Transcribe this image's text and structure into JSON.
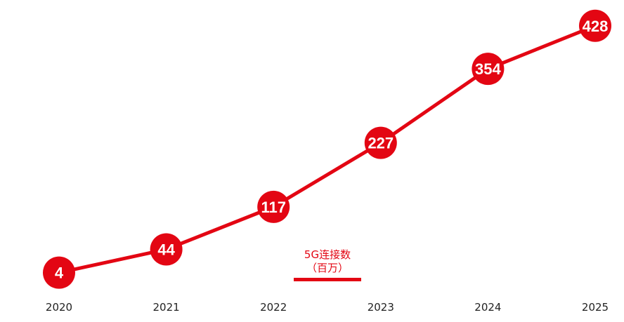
{
  "chart_data": {
    "type": "line",
    "x": [
      "2020",
      "2021",
      "2022",
      "2023",
      "2024",
      "2025"
    ],
    "series": [
      {
        "name": "5G连接数（百万）",
        "values": [
          4,
          44,
          117,
          227,
          354,
          428
        ]
      }
    ],
    "title": "",
    "xlabel": "",
    "ylabel": "",
    "ylim": [
      0,
      450
    ],
    "grid": false,
    "legend_placement": "bottom-center",
    "legend_lines": [
      "5G连接数",
      "（百万）"
    ],
    "series_color": "#e30613",
    "label_color": "#ffffff"
  }
}
